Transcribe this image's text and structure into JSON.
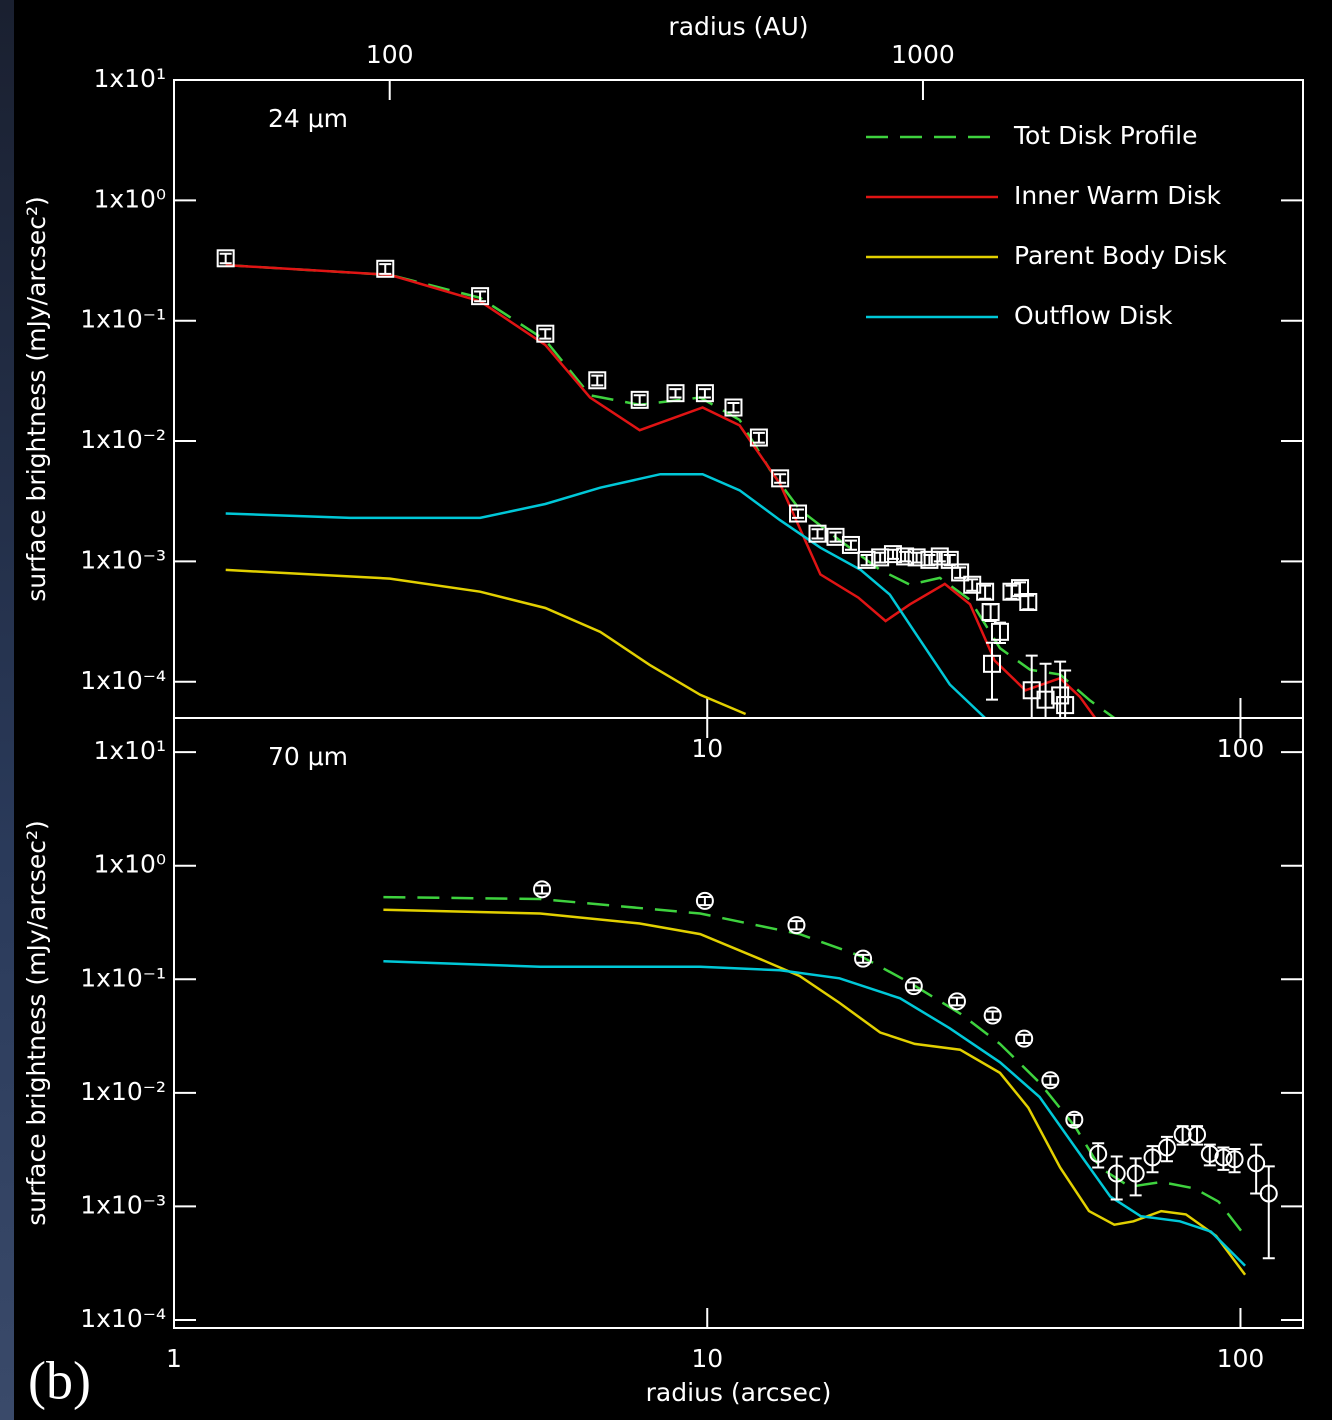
{
  "chart_data": [
    {
      "type": "line",
      "annotation": "24 μm",
      "ylabel": "surface brightness (mJy/arcsec²)",
      "x2label": "radius (AU)",
      "xscale": "log",
      "yscale": "log",
      "xlim": [
        1,
        131
      ],
      "ylim": [
        5e-05,
        10
      ],
      "x2lim": [
        39.4,
        5160
      ],
      "xticks": [
        10,
        100
      ],
      "x2ticks": [
        100,
        1000
      ],
      "yticks": [
        {
          "value": 0.0001,
          "label": "1x10⁻⁴"
        },
        {
          "value": 0.001,
          "label": "1x10⁻³"
        },
        {
          "value": 0.01,
          "label": "1x10⁻²"
        },
        {
          "value": 0.1,
          "label": "1x10⁻¹"
        },
        {
          "value": 1,
          "label": "1x10⁰"
        },
        {
          "value": 10,
          "label": "1x10¹"
        }
      ],
      "legend": "upper right",
      "series": [
        {
          "name": "Tot Disk Profile",
          "color": "#3ed23e",
          "dash": true,
          "x": [
            1.25,
            2.54,
            3.75,
            4.97,
            6.03,
            7.47,
            9.7,
            11.5,
            13.1,
            14.9,
            17.7,
            21.1,
            24.0,
            27.3,
            31.1,
            35.4,
            40.3,
            45.9,
            52.2,
            58
          ],
          "values": [
            0.29,
            0.24,
            0.155,
            0.069,
            0.024,
            0.02,
            0.023,
            0.015,
            0.0058,
            0.0027,
            0.0015,
            0.00085,
            0.00064,
            0.00073,
            0.00048,
            0.00019,
            0.000126,
            0.000115,
            7e-05,
            5e-05
          ]
        },
        {
          "name": "Inner Warm Disk",
          "color": "#e01414",
          "x": [
            1.25,
            2.54,
            3.75,
            4.97,
            6.03,
            7.47,
            9.8,
            11.5,
            13.7,
            14.9,
            16.3,
            19.2,
            21.6,
            24.0,
            27.9,
            31.1,
            34.6,
            39.5,
            45.9,
            50.0,
            53.4
          ],
          "values": [
            0.29,
            0.24,
            0.145,
            0.063,
            0.023,
            0.0123,
            0.019,
            0.0135,
            0.0044,
            0.0019,
            0.00078,
            0.0005,
            0.00032,
            0.00044,
            0.00065,
            0.00044,
            0.00015,
            8.5e-05,
            0.000107,
            7.5e-05,
            5e-05
          ]
        },
        {
          "name": "Parent Body Disk",
          "color": "#e2d000",
          "x": [
            1.25,
            2.54,
            3.75,
            4.97,
            6.3,
            7.8,
            9.7,
            11.8
          ],
          "values": [
            0.00085,
            0.00072,
            0.00056,
            0.00041,
            0.00026,
            0.000138,
            7.8e-05,
            5.4e-05
          ]
        },
        {
          "name": "Outflow Disk",
          "color": "#00c8d8",
          "x": [
            1.25,
            2.14,
            3.75,
            4.97,
            6.3,
            8.17,
            9.8,
            11.5,
            13.7,
            16.3,
            19.4,
            22.0,
            25.1,
            28.5,
            33.2
          ],
          "values": [
            0.0025,
            0.0023,
            0.0023,
            0.003,
            0.0041,
            0.0053,
            0.0053,
            0.0039,
            0.0022,
            0.0013,
            0.00085,
            0.00053,
            0.00022,
            9.5e-05,
            5e-05
          ]
        }
      ],
      "points": {
        "marker": "square",
        "color": "#ffffff",
        "x": [
          1.25,
          2.49,
          3.75,
          4.97,
          6.22,
          7.47,
          8.72,
          9.9,
          11.2,
          12.5,
          13.7,
          14.8,
          16.1,
          17.4,
          18.6,
          19.9,
          21.1,
          22.3,
          23.5,
          24.7,
          26.1,
          27.3,
          28.5,
          29.8,
          31.4,
          33.2,
          34.0,
          35.4,
          37.2,
          38.6,
          40.0,
          34.2,
          40.6,
          43.1,
          45.9,
          46.9
        ],
        "values": [
          0.33,
          0.27,
          0.16,
          0.078,
          0.032,
          0.022,
          0.025,
          0.025,
          0.019,
          0.0107,
          0.0049,
          0.0025,
          0.0017,
          0.0016,
          0.00137,
          0.00103,
          0.00108,
          0.00115,
          0.0011,
          0.00108,
          0.00103,
          0.0011,
          0.00103,
          0.00081,
          0.00064,
          0.00056,
          0.00038,
          0.00026,
          0.00056,
          0.0006,
          0.00046,
          0.000141,
          8.5e-05,
          7.1e-05,
          7.7e-05,
          6.4e-05
        ],
        "errors": [
          0.03,
          0.025,
          0.015,
          0.007,
          0.003,
          0.002,
          0.002,
          0.002,
          0.0017,
          0.001,
          0.0004,
          0.0002,
          0.00015,
          0.00014,
          0.00012,
          0.0001,
          0.0001,
          0.0001,
          0.0001,
          0.0001,
          0.0001,
          0.0001,
          0.0001,
          8e-05,
          7e-05,
          7e-05,
          6e-05,
          5e-05,
          7e-05,
          7e-05,
          6e-05,
          7e-05,
          8e-05,
          7e-05,
          7e-05,
          6e-05
        ]
      }
    },
    {
      "type": "line",
      "annotation": "70 μm",
      "ylabel": "surface brightness (mJy/arcsec²)",
      "xlabel": "radius (arcsec)",
      "panel_label": "(b)",
      "xscale": "log",
      "yscale": "log",
      "xlim": [
        1,
        131
      ],
      "ylim": [
        8.5e-05,
        20
      ],
      "xticks": [
        1,
        10,
        100
      ],
      "yticks": [
        {
          "value": 0.0001,
          "label": "1x10⁻⁴"
        },
        {
          "value": 0.001,
          "label": "1x10⁻³"
        },
        {
          "value": 0.01,
          "label": "1x10⁻²"
        },
        {
          "value": 0.1,
          "label": "1x10⁻¹"
        },
        {
          "value": 1,
          "label": "1x10⁰"
        },
        {
          "value": 10,
          "label": "1x10¹"
        }
      ],
      "series": [
        {
          "color": "#3ed23e",
          "dash": true,
          "x": [
            2.47,
            4.86,
            9.7,
            14.9,
            19.4,
            24.0,
            29.8,
            35.4,
            42.0,
            49,
            54.5,
            62,
            71,
            82,
            91,
            102
          ],
          "values": [
            0.53,
            0.51,
            0.38,
            0.25,
            0.16,
            0.093,
            0.05,
            0.027,
            0.0123,
            0.005,
            0.0022,
            0.00149,
            0.00164,
            0.00144,
            0.0011,
            0.00055
          ]
        },
        {
          "color": "#e2d000",
          "x": [
            2.47,
            4.86,
            7.47,
            9.7,
            12.6,
            14.9,
            17.7,
            21.1,
            24.5,
            29.8,
            35.4,
            40,
            45.9,
            52,
            58,
            63,
            71,
            79,
            90,
            102
          ],
          "values": [
            0.41,
            0.38,
            0.31,
            0.25,
            0.15,
            0.107,
            0.062,
            0.034,
            0.027,
            0.024,
            0.015,
            0.0074,
            0.0022,
            0.00091,
            0.00069,
            0.00074,
            0.00091,
            0.00085,
            0.00055,
            0.00025
          ]
        },
        {
          "color": "#00c8d8",
          "x": [
            2.47,
            4.86,
            9.7,
            13.7,
            17.7,
            23,
            28.5,
            35.4,
            42,
            49,
            57,
            65,
            77,
            88,
            102
          ],
          "values": [
            0.144,
            0.129,
            0.129,
            0.12,
            0.102,
            0.068,
            0.037,
            0.0186,
            0.0092,
            0.0033,
            0.00122,
            0.00082,
            0.00074,
            0.0006,
            0.0003
          ]
        }
      ],
      "points": {
        "marker": "circle",
        "color": "#ffffff",
        "x": [
          4.9,
          9.9,
          14.7,
          19.6,
          24.4,
          29.4,
          34.3,
          39.3,
          44.0,
          48.8,
          54.1,
          58.6,
          63.6,
          68.4,
          72.8,
          77.9,
          82.9,
          87.6,
          92.9,
          97.5,
          107,
          113
        ],
        "values": [
          0.62,
          0.49,
          0.3,
          0.152,
          0.087,
          0.064,
          0.048,
          0.03,
          0.0129,
          0.0058,
          0.0029,
          0.00195,
          0.00195,
          0.0027,
          0.0033,
          0.0043,
          0.0043,
          0.0029,
          0.0027,
          0.0026,
          0.0024,
          0.0013
        ],
        "errors": [
          0.05,
          0.04,
          0.025,
          0.012,
          0.007,
          0.005,
          0.004,
          0.0025,
          0.0011,
          0.0006,
          0.0007,
          0.0008,
          0.0007,
          0.0007,
          0.0008,
          0.0008,
          0.0008,
          0.0006,
          0.0006,
          0.0006,
          0.0011,
          0.00095
        ]
      }
    }
  ]
}
